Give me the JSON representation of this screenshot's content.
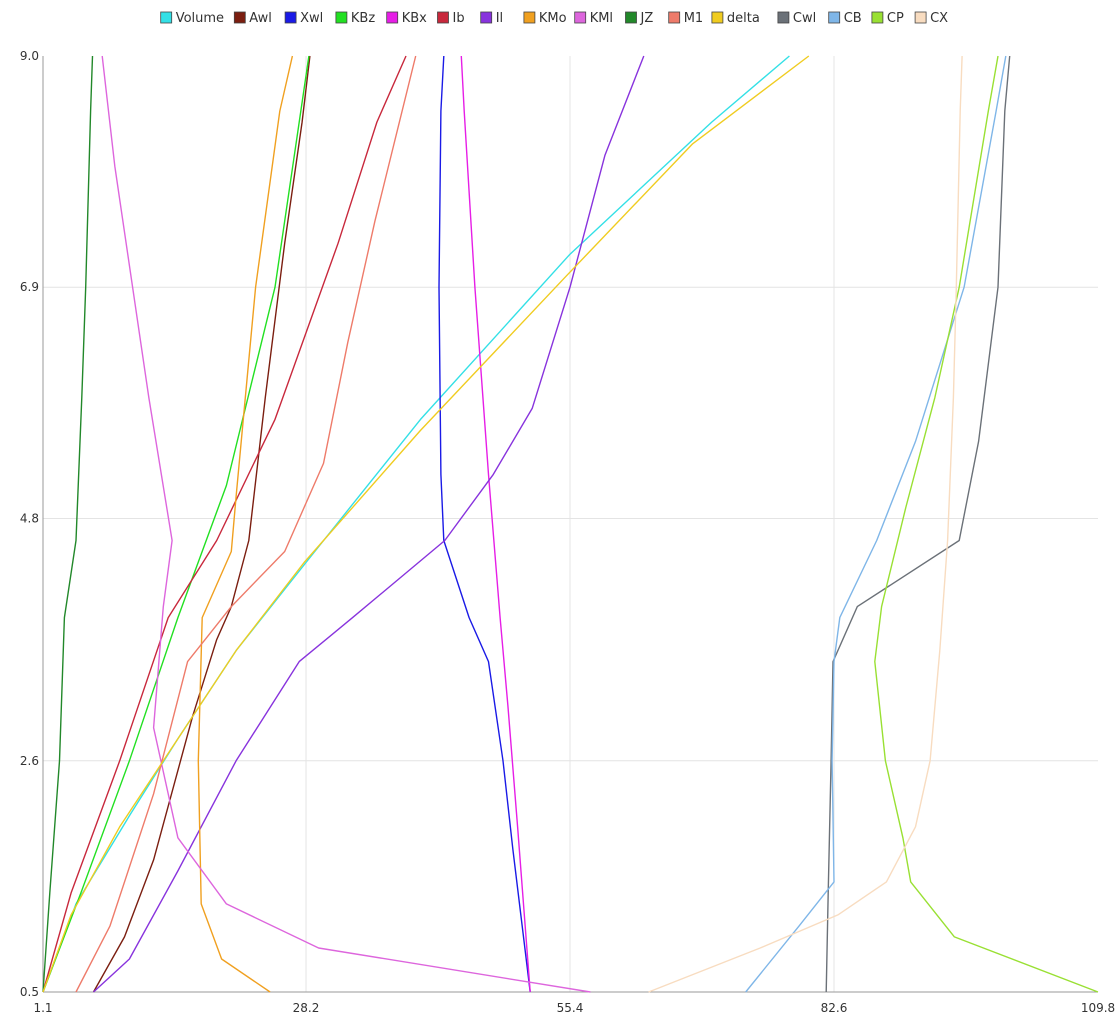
{
  "chart_data": {
    "type": "line",
    "title": "",
    "xlabel": "",
    "ylabel": "",
    "xlim": [
      1.1,
      109.8
    ],
    "ylim": [
      0.5,
      9.0
    ],
    "x_ticks": [
      "1.1",
      "28.2",
      "55.4",
      "82.6",
      "109.8"
    ],
    "y_ticks": [
      "0.5",
      "2.6",
      "4.8",
      "6.9",
      "9.0"
    ],
    "grid": true,
    "legend_position": "top",
    "series": [
      {
        "name": "Volume",
        "color": "#33e0e6",
        "points": [
          [
            1.1,
            0.5
          ],
          [
            4.5,
            1.3
          ],
          [
            10,
            2.1
          ],
          [
            15,
            2.8
          ],
          [
            21,
            3.6
          ],
          [
            28.2,
            4.4
          ],
          [
            40,
            5.7
          ],
          [
            55.4,
            7.2
          ],
          [
            70,
            8.4
          ],
          [
            78,
            9.0
          ]
        ]
      },
      {
        "name": "Awl",
        "color": "#7b1e10",
        "points": [
          [
            6.3,
            0.5
          ],
          [
            9.5,
            1.0
          ],
          [
            12.5,
            1.7
          ],
          [
            16.5,
            3.0
          ],
          [
            19,
            3.7
          ],
          [
            20.5,
            4.0
          ],
          [
            22.3,
            4.6
          ],
          [
            24,
            5.9
          ],
          [
            26,
            7.3
          ],
          [
            27.8,
            8.4
          ],
          [
            28.6,
            9.0
          ]
        ]
      },
      {
        "name": "Xwl",
        "color": "#1a1ae6",
        "points": [
          [
            51.3,
            0.5
          ],
          [
            49.5,
            1.8
          ],
          [
            48.5,
            2.6
          ],
          [
            47,
            3.5
          ],
          [
            45,
            3.9
          ],
          [
            42.4,
            4.6
          ],
          [
            42.1,
            5.2
          ],
          [
            41.9,
            6.9
          ],
          [
            42.1,
            8.5
          ],
          [
            42.4,
            9.0
          ]
        ]
      },
      {
        "name": "KBz",
        "color": "#22e022",
        "points": [
          [
            1.1,
            0.5
          ],
          [
            5,
            1.4
          ],
          [
            10,
            2.6
          ],
          [
            15,
            3.9
          ],
          [
            20,
            5.1
          ],
          [
            25,
            6.9
          ],
          [
            28.5,
            9.0
          ]
        ]
      },
      {
        "name": "KBx",
        "color": "#e61ee6",
        "points": [
          [
            51.3,
            0.5
          ],
          [
            50,
            2.0
          ],
          [
            49,
            3.1
          ],
          [
            48.2,
            3.9
          ],
          [
            47,
            5.2
          ],
          [
            45.6,
            6.9
          ],
          [
            44.5,
            8.5
          ],
          [
            44.2,
            9.0
          ]
        ]
      },
      {
        "name": "Ib",
        "color": "#c8283c",
        "points": [
          [
            1.1,
            0.5
          ],
          [
            4,
            1.4
          ],
          [
            9,
            2.6
          ],
          [
            14,
            3.9
          ],
          [
            19,
            4.6
          ],
          [
            25,
            5.7
          ],
          [
            31.5,
            7.3
          ],
          [
            35.5,
            8.4
          ],
          [
            38.5,
            9.0
          ]
        ]
      },
      {
        "name": "Il",
        "color": "#8833dd",
        "points": [
          [
            6.3,
            0.5
          ],
          [
            10,
            0.8
          ],
          [
            15,
            1.6
          ],
          [
            21,
            2.6
          ],
          [
            27.5,
            3.5
          ],
          [
            33,
            3.9
          ],
          [
            42.5,
            4.6
          ],
          [
            47.5,
            5.2
          ],
          [
            51.5,
            5.8
          ],
          [
            55.4,
            6.9
          ],
          [
            59,
            8.1
          ],
          [
            63,
            9.0
          ]
        ]
      },
      {
        "name": "KMo",
        "color": "#f0a020",
        "points": [
          [
            24.5,
            0.5
          ],
          [
            19.5,
            0.8
          ],
          [
            17.4,
            1.3
          ],
          [
            17.1,
            2.6
          ],
          [
            17.5,
            3.9
          ],
          [
            20.5,
            4.5
          ],
          [
            21,
            5.0
          ],
          [
            23,
            6.9
          ],
          [
            25.5,
            8.5
          ],
          [
            26.8,
            9.0
          ]
        ]
      },
      {
        "name": "KMl",
        "color": "#dd66dd",
        "points": [
          [
            57.5,
            0.5
          ],
          [
            29.5,
            0.9
          ],
          [
            20,
            1.3
          ],
          [
            15,
            1.9
          ],
          [
            12.5,
            2.9
          ],
          [
            13.5,
            4.0
          ],
          [
            14.4,
            4.6
          ],
          [
            12,
            5.9
          ],
          [
            8.5,
            8.0
          ],
          [
            7.2,
            9.0
          ]
        ]
      },
      {
        "name": "JZ",
        "color": "#22882a",
        "points": [
          [
            1.1,
            0.5
          ],
          [
            1.8,
            1.4
          ],
          [
            2.8,
            2.6
          ],
          [
            3.3,
            3.9
          ],
          [
            4.5,
            4.6
          ],
          [
            5.1,
            5.9
          ],
          [
            5.5,
            6.9
          ],
          [
            6,
            8.5
          ],
          [
            6.2,
            9.0
          ]
        ]
      },
      {
        "name": "M1",
        "color": "#ee7b6a",
        "points": [
          [
            4.5,
            0.5
          ],
          [
            8,
            1.1
          ],
          [
            12.5,
            2.3
          ],
          [
            16,
            3.5
          ],
          [
            20.5,
            4.0
          ],
          [
            26,
            4.5
          ],
          [
            30,
            5.3
          ],
          [
            32.5,
            6.4
          ],
          [
            35.3,
            7.5
          ],
          [
            39.5,
            9.0
          ]
        ]
      },
      {
        "name": "delta",
        "color": "#f0cc20",
        "points": [
          [
            1.1,
            0.5
          ],
          [
            4,
            1.2
          ],
          [
            9,
            2.0
          ],
          [
            15,
            2.8
          ],
          [
            21,
            3.6
          ],
          [
            28,
            4.4
          ],
          [
            40,
            5.6
          ],
          [
            55,
            7.0
          ],
          [
            68,
            8.2
          ],
          [
            80,
            9.0
          ]
        ]
      },
      {
        "name": "Cwl",
        "color": "#6b7178",
        "points": [
          [
            81.8,
            0.5
          ],
          [
            82.0,
            1.4
          ],
          [
            82.3,
            2.6
          ],
          [
            82.5,
            3.5
          ],
          [
            85,
            4.0
          ],
          [
            95.5,
            4.6
          ],
          [
            97.5,
            5.5
          ],
          [
            99.5,
            6.9
          ],
          [
            100.2,
            8.5
          ],
          [
            100.7,
            9.0
          ]
        ]
      },
      {
        "name": "CB",
        "color": "#7fb6e8",
        "points": [
          [
            73.5,
            0.5
          ],
          [
            79,
            1.1
          ],
          [
            82.6,
            1.5
          ],
          [
            82.4,
            2.6
          ],
          [
            82.6,
            3.5
          ],
          [
            83.2,
            3.9
          ],
          [
            87,
            4.6
          ],
          [
            91,
            5.5
          ],
          [
            96,
            6.9
          ],
          [
            99.3,
            8.5
          ],
          [
            100.3,
            9.0
          ]
        ]
      },
      {
        "name": "CP",
        "color": "#99e033",
        "points": [
          [
            109.8,
            0.5
          ],
          [
            95,
            1.0
          ],
          [
            90.5,
            1.5
          ],
          [
            89.7,
            1.9
          ],
          [
            87.9,
            2.6
          ],
          [
            86.8,
            3.5
          ],
          [
            87.5,
            4.0
          ],
          [
            90,
            4.9
          ],
          [
            93,
            5.9
          ],
          [
            95.5,
            6.9
          ],
          [
            98.5,
            8.5
          ],
          [
            99.5,
            9.0
          ]
        ]
      },
      {
        "name": "CX",
        "color": "#f8dcc0",
        "points": [
          [
            63.5,
            0.5
          ],
          [
            75,
            0.9
          ],
          [
            83,
            1.2
          ],
          [
            88,
            1.5
          ],
          [
            91,
            2.0
          ],
          [
            92.5,
            2.6
          ],
          [
            93.5,
            3.6
          ],
          [
            94.3,
            4.6
          ],
          [
            94.9,
            5.9
          ],
          [
            95.2,
            6.9
          ],
          [
            95.6,
            8.5
          ],
          [
            95.8,
            9.0
          ]
        ]
      }
    ]
  }
}
